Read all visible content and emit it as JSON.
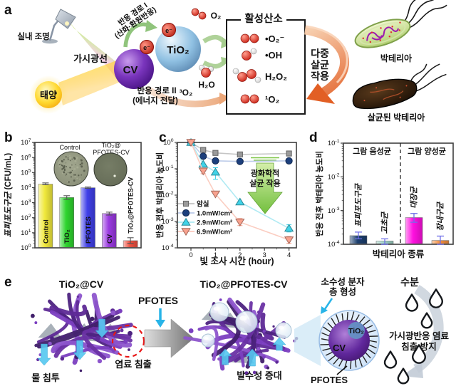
{
  "panel_labels": {
    "a": "a",
    "b": "b",
    "c": "c",
    "d": "d",
    "e": "e"
  },
  "panel_a": {
    "indoor_light": "실내 조명",
    "visible_light": "가시광선",
    "sun": "태양",
    "cv": "CV",
    "tio2": "TiO₂",
    "electron": "e⁻",
    "path1_line1": "반응 경로 I",
    "path1_line2": "(산화·환원반응)",
    "path2_line1": "반응 경로 II",
    "path2_line2": "(에너지 전달)",
    "o2": "O₂",
    "h2o": "H₂O",
    "triplet_oxygen": "³O₂",
    "ros_box_title": "활성산소",
    "ros_species": [
      "•O₂⁻",
      "•OH",
      "H₂O₂",
      "¹O₂"
    ],
    "multi_kill_line1": "다중",
    "multi_kill_line2": "살균",
    "multi_kill_line3": "작용",
    "bacteria_label": "박테리아",
    "killed_bacteria_label": "살균된 박테리아"
  },
  "panel_e": {
    "tio2_cv": "TiO₂@CV",
    "pfotes_treatment": "PFOTES",
    "tio2_pfotes_cv": "TiO₂@PFOTES-CV",
    "dye_leaching": "염료 침출",
    "water_penetration": "물 침투",
    "water_repellency": "발수성 증대",
    "hydrophobic_layer_line1": "소수성 분자",
    "hydrophobic_layer_line2": "층 형성",
    "moisture": "수분",
    "sphere_tio2": "TiO₂",
    "sphere_cv": "CV",
    "pfotes_coating": "PFOTES",
    "leach_prevention_line1": "가시광반응 염료",
    "leach_prevention_line2": "침출 방지"
  },
  "chart_data": [
    {
      "id": "b",
      "type": "bar",
      "yscale": "log",
      "ylim": [
        1,
        10000000
      ],
      "ylabel_species": "표피포도구균",
      "ylabel_unit": " (CFU/mL)",
      "categories": [
        "Control",
        "TiO₂",
        "PFOTES",
        "CV",
        "TiO₂@PFOTES-CV"
      ],
      "values": [
        17000,
        2200,
        9800,
        190,
        3
      ],
      "err_lo": [
        15500,
        1650,
        9000,
        150,
        2
      ],
      "err_hi": [
        20500,
        2900,
        11000,
        235,
        4.7
      ],
      "bar_colors": [
        "#f0e83c",
        "#2ed52e",
        "#4040e8",
        "#9a3ae0",
        "#ef5040"
      ],
      "label_colors": [
        "#111111",
        "#111111",
        "#ffffff",
        "#ffffff",
        "#111111"
      ],
      "inset_labels": [
        "Control",
        "TiO₂@",
        "PFOTES-CV"
      ]
    },
    {
      "id": "c",
      "type": "line",
      "xlabel": "빛 조사 시간 (hour)",
      "ylabel": "반응 전후 박테리아 농도비",
      "xticks": [
        0,
        1,
        2,
        3,
        4
      ],
      "yscale": "log",
      "ylim": [
        0.0001,
        1
      ],
      "series": [
        {
          "name": "암실",
          "marker": "square",
          "color": "#9a9a9a",
          "line_color": "#c2c2c2",
          "x": [
            0,
            0.5,
            1,
            2,
            4
          ],
          "y": [
            1,
            0.52,
            0.4,
            0.35,
            0.38
          ],
          "err_lo": [
            null,
            0.44,
            0.33,
            0.29,
            0.31
          ],
          "err_hi": [
            null,
            0.62,
            0.48,
            0.42,
            0.46
          ]
        },
        {
          "name": "1.0mW/cm²",
          "marker": "circle",
          "color": "#1c3f7c",
          "line_color": "#b9c9e8",
          "x": [
            0,
            0.5,
            1,
            2,
            4
          ],
          "y": [
            1,
            0.3,
            0.2,
            0.19,
            0.2
          ],
          "err_lo": [
            null,
            0.26,
            null,
            null,
            null
          ],
          "err_hi": [
            null,
            0.35,
            null,
            null,
            null
          ]
        },
        {
          "name": "2.9mW/cm²",
          "marker": "triangle-up",
          "color": "#41d3e8",
          "line_color": "#ace9f2",
          "x": [
            0,
            0.5,
            1,
            2,
            4
          ],
          "y": [
            1,
            0.15,
            0.075,
            0.0055,
            0.00055
          ],
          "err_lo": [
            null,
            null,
            0.04,
            null,
            0.0004
          ],
          "err_hi": [
            null,
            null,
            0.11,
            null,
            0.00075
          ]
        },
        {
          "name": "6.9mW/cm²",
          "marker": "triangle-down",
          "color": "#f9a28e",
          "line_color": "#fbcabe",
          "x": [
            0,
            0.5,
            1,
            2,
            4
          ],
          "y": [
            1,
            0.082,
            0.011,
            0.00095,
            0.0002
          ],
          "err_lo": [
            null,
            0.065,
            null,
            0.0007,
            0.00015
          ],
          "err_hi": [
            null,
            0.1,
            null,
            0.0013,
            0.00027
          ]
        }
      ],
      "annotation_line1": "광화학적",
      "annotation_line2": "살균 작용"
    },
    {
      "id": "d",
      "type": "bar",
      "xlabel": "박테리아 종류",
      "ylabel": "반응 전후 박테리아 농도비",
      "yscale": "log",
      "ylim": [
        0.0001,
        0.1
      ],
      "group_left": "그람 음성균",
      "group_left_color": "#2d8fea",
      "group_right": "그람 양성균",
      "group_right_color": "#ee1515",
      "categories": [
        "표피포도구균",
        "고초균",
        "대장균",
        "장내구균"
      ],
      "values": [
        0.00018,
        0.000125,
        0.00062,
        0.00013
      ],
      "err_lo": [
        0.000145,
        0.0001,
        0.00045,
        0.0001
      ],
      "err_hi": [
        0.00023,
        0.000145,
        0.00082,
        0.000175
      ],
      "bar_colors": [
        "#1c3f6e",
        "#9fd4c8",
        "#ff10e0",
        "#f59040"
      ],
      "error_color": "#6f6fe8"
    }
  ]
}
